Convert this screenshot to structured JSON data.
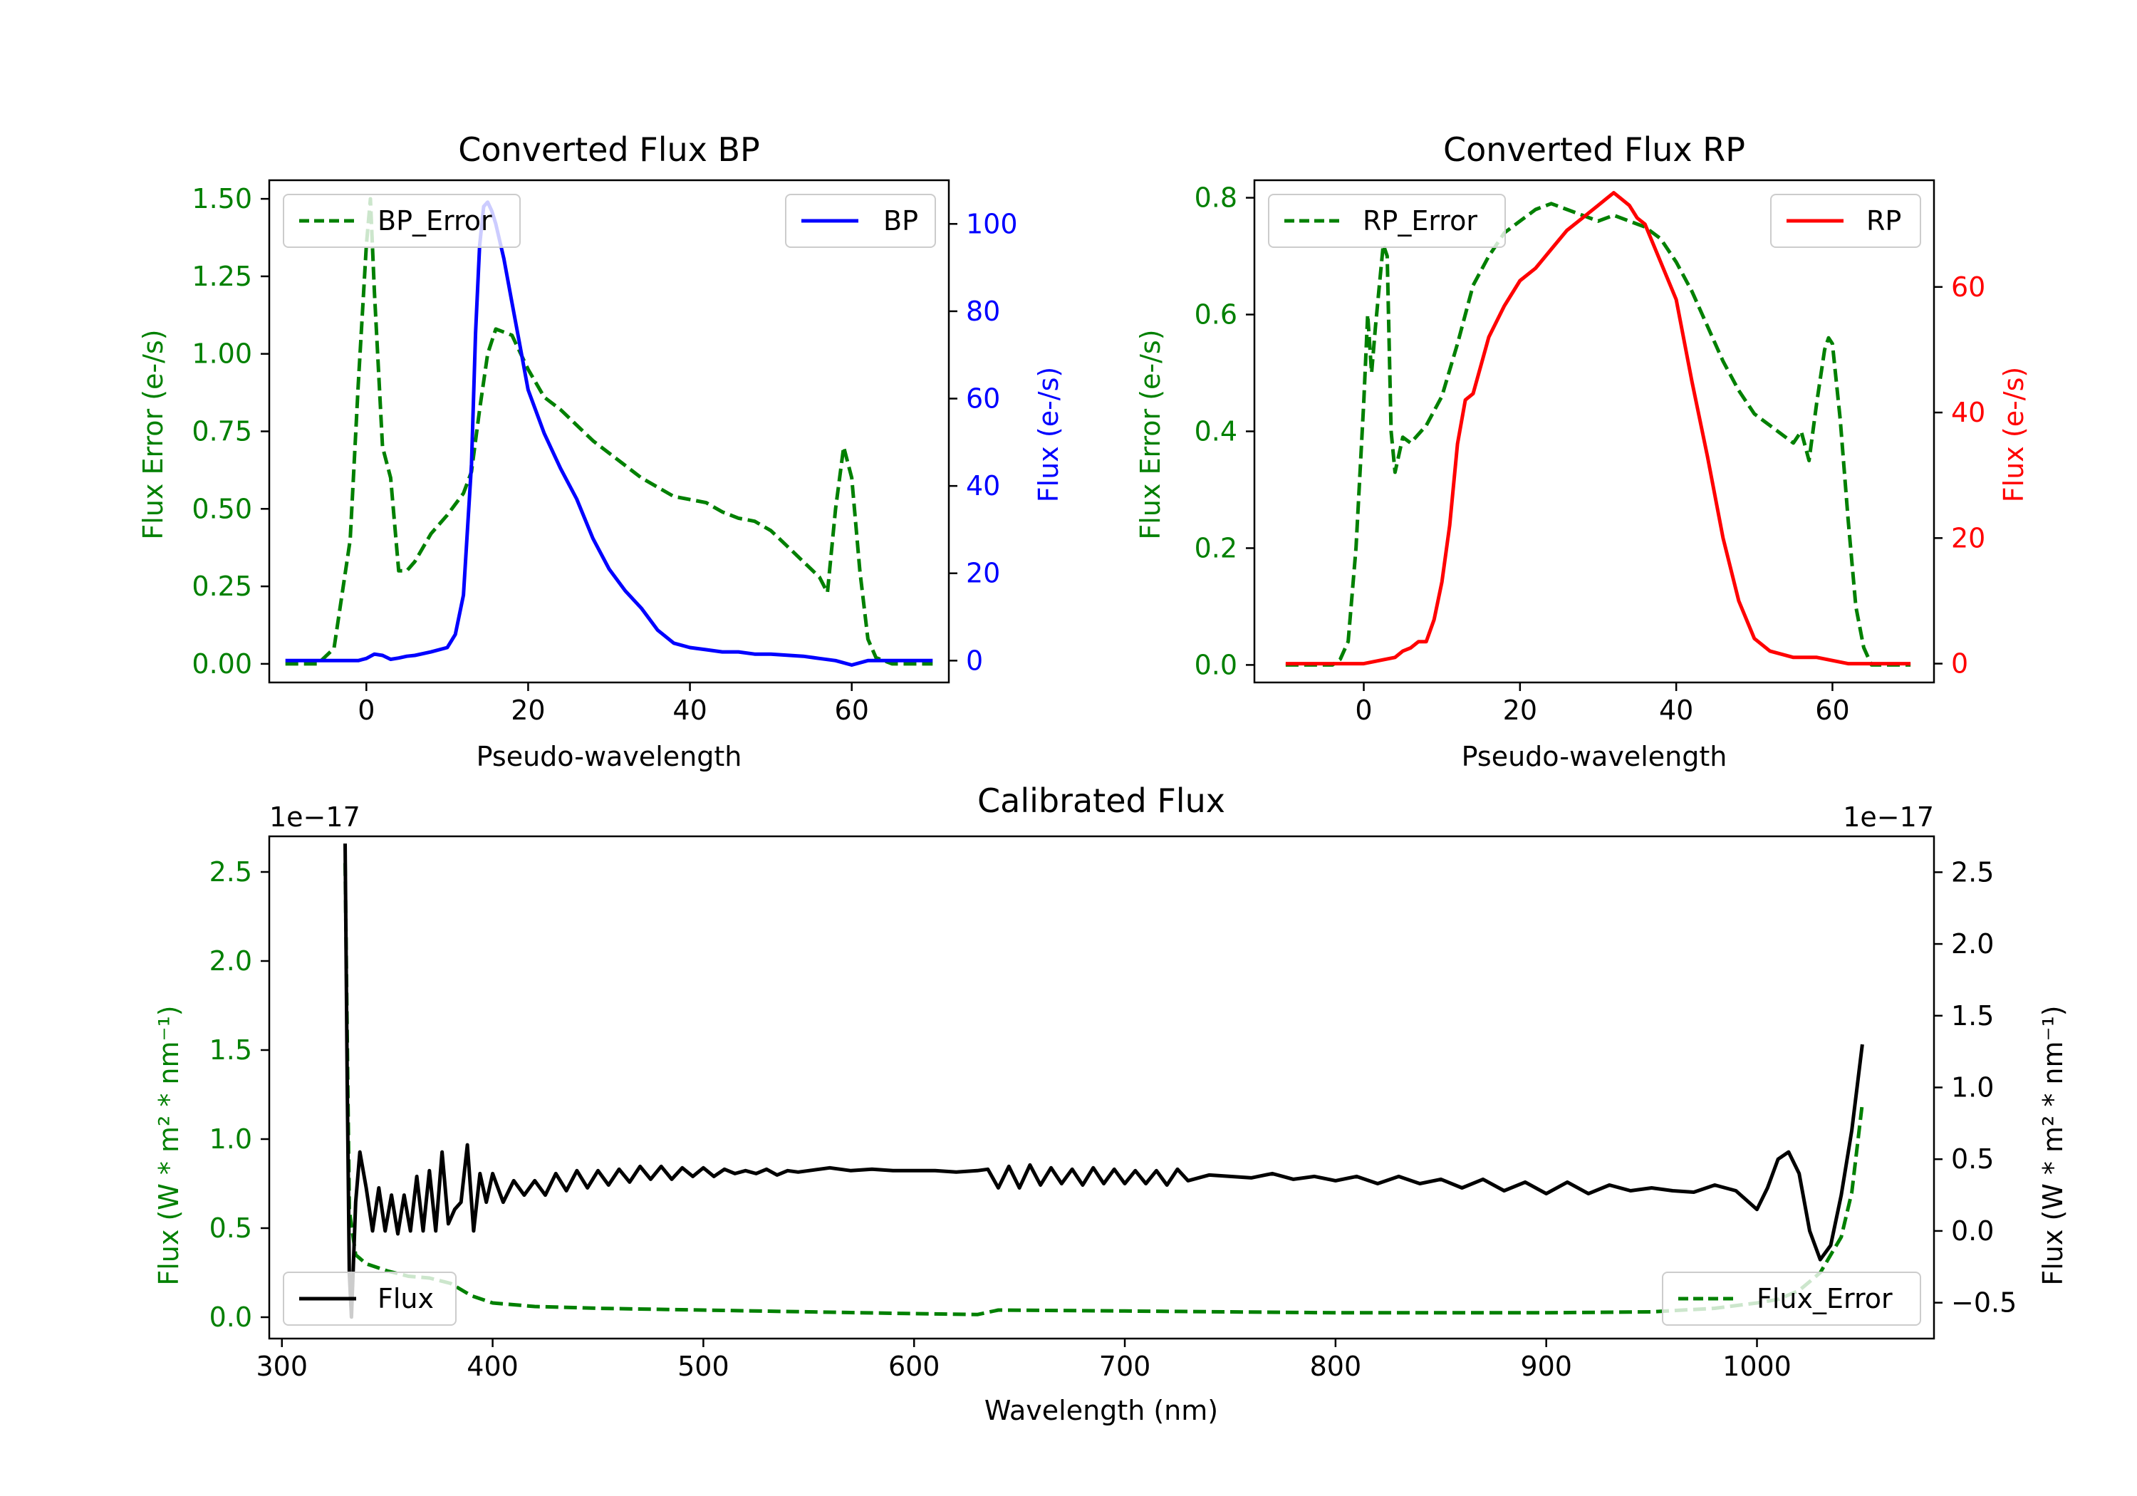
{
  "chart_data": [
    {
      "id": "bp",
      "type": "line",
      "title": "Converted Flux BP",
      "xlabel": "Pseudo-wavelength",
      "ylabel_left": "Flux Error (e-/s)",
      "ylabel_right": "Flux (e-/s)",
      "xlim": [
        -12,
        72
      ],
      "ylim_left": [
        -0.06,
        1.56
      ],
      "ylim_right": [
        -5,
        110
      ],
      "xticks": [
        "0",
        "20",
        "40",
        "60"
      ],
      "xtick_values": [
        0,
        20,
        40,
        60
      ],
      "yticks_left": [
        "0.00",
        "0.25",
        "0.50",
        "0.75",
        "1.00",
        "1.25",
        "1.50"
      ],
      "ytick_values_left": [
        0,
        0.25,
        0.5,
        0.75,
        1.0,
        1.25,
        1.5
      ],
      "yticks_right": [
        "0",
        "20",
        "40",
        "60",
        "80",
        "100"
      ],
      "ytick_values_right": [
        0,
        20,
        40,
        60,
        80,
        100
      ],
      "colors": {
        "error": "#008000",
        "flux": "#0000ff",
        "left_axis": "#008000",
        "right_axis": "#0000ff"
      },
      "series": [
        {
          "name": "BP_Error",
          "axis": "left",
          "style": "dashed",
          "color": "#008000",
          "x": [
            -10,
            -6,
            -4,
            -2,
            -1,
            0,
            0.5,
            1,
            2,
            3,
            4,
            5,
            6,
            8,
            10,
            12,
            13,
            14,
            15,
            16,
            17,
            18,
            20,
            22,
            24,
            26,
            28,
            30,
            32,
            34,
            36,
            38,
            40,
            42,
            44,
            46,
            48,
            50,
            52,
            54,
            56,
            57,
            58,
            59,
            60,
            61,
            62,
            63,
            65,
            70
          ],
          "values": [
            0,
            0,
            0.05,
            0.4,
            0.9,
            1.35,
            1.5,
            1.2,
            0.7,
            0.6,
            0.3,
            0.3,
            0.33,
            0.42,
            0.48,
            0.55,
            0.62,
            0.82,
            1.0,
            1.08,
            1.07,
            1.06,
            0.95,
            0.86,
            0.82,
            0.77,
            0.72,
            0.68,
            0.64,
            0.6,
            0.57,
            0.54,
            0.53,
            0.52,
            0.49,
            0.47,
            0.46,
            0.43,
            0.38,
            0.33,
            0.28,
            0.23,
            0.5,
            0.7,
            0.6,
            0.3,
            0.08,
            0.02,
            0,
            0
          ]
        },
        {
          "name": "BP",
          "axis": "right",
          "style": "solid",
          "color": "#0000ff",
          "x": [
            -10,
            -5,
            -3,
            -1,
            0,
            1,
            2,
            3,
            4,
            5,
            6,
            8,
            10,
            11,
            12,
            13,
            13.5,
            14,
            14.5,
            15,
            15.5,
            16,
            17,
            18,
            19,
            20,
            22,
            24,
            26,
            28,
            30,
            32,
            34,
            36,
            38,
            40,
            42,
            44,
            46,
            48,
            50,
            54,
            56,
            58,
            60,
            62,
            64,
            66,
            70
          ],
          "values": [
            0,
            0,
            0,
            0,
            0.5,
            1.5,
            1.2,
            0.3,
            0.6,
            1,
            1.2,
            2,
            3,
            6,
            15,
            45,
            75,
            95,
            104,
            105,
            103,
            100,
            92,
            82,
            72,
            62,
            52,
            44,
            37,
            28,
            21,
            16,
            12,
            7,
            4,
            3,
            2.5,
            2,
            2,
            1.5,
            1.5,
            1,
            0.5,
            0,
            -1,
            0,
            0,
            0,
            0
          ]
        }
      ],
      "legend": [
        {
          "label": "BP_Error",
          "style": "dashed",
          "color": "#008000",
          "position": "upper-left"
        },
        {
          "label": "BP",
          "style": "solid",
          "color": "#0000ff",
          "position": "upper-right"
        }
      ]
    },
    {
      "id": "rp",
      "type": "line",
      "title": "Converted Flux RP",
      "xlabel": "Pseudo-wavelength",
      "ylabel_left": "Flux Error (e-/s)",
      "ylabel_right": "Flux (e-/s)",
      "xlim": [
        -14,
        73
      ],
      "ylim_left": [
        -0.03,
        0.83
      ],
      "ylim_right": [
        -3,
        77
      ],
      "xticks": [
        "0",
        "20",
        "40",
        "60"
      ],
      "xtick_values": [
        0,
        20,
        40,
        60
      ],
      "yticks_left": [
        "0.0",
        "0.2",
        "0.4",
        "0.6",
        "0.8"
      ],
      "ytick_values_left": [
        0,
        0.2,
        0.4,
        0.6,
        0.8
      ],
      "yticks_right": [
        "0",
        "20",
        "40",
        "60"
      ],
      "ytick_values_right": [
        0,
        20,
        40,
        60
      ],
      "colors": {
        "error": "#008000",
        "flux": "#ff0000",
        "left_axis": "#008000",
        "right_axis": "#ff0000"
      },
      "series": [
        {
          "name": "RP_Error",
          "axis": "left",
          "style": "dashed",
          "color": "#008000",
          "x": [
            -10,
            -5,
            -4,
            -3,
            -2,
            -1,
            0,
            0.5,
            1,
            1.5,
            2,
            2.5,
            3,
            3.5,
            4,
            5,
            6,
            8,
            10,
            12,
            14,
            16,
            18,
            20,
            22,
            24,
            26,
            28,
            30,
            32,
            34,
            36,
            38,
            40,
            42,
            44,
            46,
            48,
            50,
            52,
            54,
            55,
            56,
            57,
            58,
            59,
            59.5,
            60,
            61,
            62,
            63,
            64,
            65,
            70
          ],
          "values": [
            0,
            0,
            0,
            0.01,
            0.04,
            0.2,
            0.45,
            0.6,
            0.5,
            0.58,
            0.65,
            0.72,
            0.7,
            0.4,
            0.33,
            0.39,
            0.38,
            0.41,
            0.46,
            0.55,
            0.65,
            0.7,
            0.74,
            0.76,
            0.78,
            0.79,
            0.78,
            0.77,
            0.76,
            0.77,
            0.76,
            0.75,
            0.73,
            0.69,
            0.64,
            0.58,
            0.52,
            0.47,
            0.43,
            0.41,
            0.39,
            0.38,
            0.4,
            0.35,
            0.45,
            0.54,
            0.56,
            0.55,
            0.42,
            0.25,
            0.1,
            0.03,
            0,
            0
          ]
        },
        {
          "name": "RP",
          "axis": "right",
          "style": "solid",
          "color": "#ff0000",
          "x": [
            -10,
            -5,
            0,
            2,
            4,
            5,
            6,
            7,
            8,
            9,
            10,
            11,
            12,
            13,
            14,
            16,
            18,
            20,
            22,
            24,
            26,
            28,
            30,
            31,
            32,
            33,
            34,
            35,
            36,
            37,
            38,
            40,
            42,
            44,
            46,
            48,
            50,
            52,
            55,
            58,
            60,
            62,
            65,
            70
          ],
          "values": [
            0,
            0,
            0,
            0.5,
            1,
            2,
            2.5,
            3.5,
            3.5,
            7,
            13,
            22,
            35,
            42,
            43,
            52,
            57,
            61,
            63,
            66,
            69,
            71,
            73,
            74,
            75,
            74,
            73,
            71,
            70,
            67,
            64,
            58,
            45,
            33,
            20,
            10,
            4,
            2,
            1,
            1,
            0.5,
            0,
            0,
            0
          ]
        }
      ],
      "legend": [
        {
          "label": "RP_Error",
          "style": "dashed",
          "color": "#008000",
          "position": "upper-left"
        },
        {
          "label": "RP",
          "style": "solid",
          "color": "#ff0000",
          "position": "upper-right"
        }
      ]
    },
    {
      "id": "cal",
      "type": "line",
      "title": "Calibrated Flux",
      "xlabel": "Wavelength (nm)",
      "ylabel_left": "Flux (W * m² * nm⁻¹)",
      "ylabel_right": "Flux (W * m² * nm⁻¹)",
      "offset_left": "1e−17",
      "offset_right": "1e−17",
      "xlim": [
        294,
        1084
      ],
      "ylim_left": [
        -0.12,
        2.7
      ],
      "ylim_right": [
        -0.75,
        2.75
      ],
      "xticks": [
        "300",
        "400",
        "500",
        "600",
        "700",
        "800",
        "900",
        "1000"
      ],
      "xtick_values": [
        300,
        400,
        500,
        600,
        700,
        800,
        900,
        1000
      ],
      "yticks_left": [
        "0.0",
        "0.5",
        "1.0",
        "1.5",
        "2.0",
        "2.5"
      ],
      "ytick_values_left": [
        0,
        0.5,
        1.0,
        1.5,
        2.0,
        2.5
      ],
      "yticks_right": [
        "−0.5",
        "0.0",
        "0.5",
        "1.0",
        "1.5",
        "2.0",
        "2.5"
      ],
      "ytick_values_right": [
        -0.5,
        0,
        0.5,
        1.0,
        1.5,
        2.0,
        2.5
      ],
      "colors": {
        "error": "#008000",
        "flux": "#000000",
        "left_axis": "#008000",
        "right_axis": "#000000"
      },
      "series": [
        {
          "name": "Flux_Error",
          "axis": "left",
          "style": "dashed",
          "color": "#008000",
          "x": [
            330,
            332,
            335,
            340,
            350,
            360,
            370,
            380,
            390,
            400,
            420,
            450,
            500,
            550,
            600,
            630,
            640,
            700,
            800,
            900,
            950,
            980,
            1000,
            1010,
            1020,
            1030,
            1040,
            1045,
            1050
          ],
          "values": [
            2.55,
            0.6,
            0.35,
            0.3,
            0.26,
            0.23,
            0.22,
            0.19,
            0.12,
            0.08,
            0.06,
            0.05,
            0.04,
            0.03,
            0.02,
            0.015,
            0.04,
            0.035,
            0.025,
            0.025,
            0.03,
            0.05,
            0.08,
            0.1,
            0.15,
            0.25,
            0.45,
            0.7,
            1.2
          ]
        },
        {
          "name": "Flux",
          "axis": "right",
          "style": "solid",
          "color": "#000000",
          "x": [
            330,
            331,
            332,
            333,
            335,
            337,
            340,
            343,
            346,
            349,
            352,
            355,
            358,
            361,
            364,
            367,
            370,
            373,
            376,
            379,
            382,
            385,
            388,
            391,
            394,
            397,
            400,
            405,
            410,
            415,
            420,
            425,
            430,
            435,
            440,
            445,
            450,
            455,
            460,
            465,
            470,
            475,
            480,
            485,
            490,
            495,
            500,
            505,
            510,
            515,
            520,
            525,
            530,
            535,
            540,
            545,
            550,
            555,
            560,
            570,
            580,
            590,
            600,
            610,
            620,
            630,
            635,
            640,
            645,
            650,
            655,
            660,
            665,
            670,
            675,
            680,
            685,
            690,
            695,
            700,
            705,
            710,
            715,
            720,
            725,
            730,
            740,
            750,
            760,
            770,
            780,
            790,
            800,
            810,
            820,
            830,
            840,
            850,
            860,
            870,
            880,
            890,
            900,
            910,
            920,
            930,
            940,
            950,
            960,
            970,
            980,
            990,
            1000,
            1005,
            1010,
            1015,
            1020,
            1025,
            1030,
            1035,
            1040,
            1045,
            1050
          ],
          "values": [
            2.7,
            1.0,
            -0.3,
            -0.6,
            0.2,
            0.55,
            0.3,
            0.0,
            0.3,
            0.0,
            0.25,
            -0.02,
            0.25,
            0.0,
            0.38,
            0.0,
            0.42,
            0.0,
            0.55,
            0.05,
            0.15,
            0.2,
            0.6,
            0.0,
            0.4,
            0.2,
            0.4,
            0.2,
            0.35,
            0.25,
            0.35,
            0.25,
            0.4,
            0.28,
            0.42,
            0.3,
            0.42,
            0.32,
            0.43,
            0.34,
            0.45,
            0.36,
            0.45,
            0.36,
            0.44,
            0.38,
            0.44,
            0.38,
            0.43,
            0.4,
            0.42,
            0.4,
            0.43,
            0.39,
            0.42,
            0.41,
            0.42,
            0.43,
            0.44,
            0.42,
            0.43,
            0.42,
            0.42,
            0.42,
            0.41,
            0.42,
            0.43,
            0.3,
            0.45,
            0.3,
            0.46,
            0.32,
            0.44,
            0.33,
            0.43,
            0.32,
            0.44,
            0.33,
            0.43,
            0.33,
            0.42,
            0.33,
            0.42,
            0.32,
            0.43,
            0.35,
            0.39,
            0.38,
            0.37,
            0.4,
            0.36,
            0.38,
            0.35,
            0.38,
            0.33,
            0.38,
            0.33,
            0.36,
            0.3,
            0.36,
            0.28,
            0.34,
            0.26,
            0.34,
            0.26,
            0.32,
            0.28,
            0.3,
            0.28,
            0.27,
            0.32,
            0.28,
            0.15,
            0.3,
            0.5,
            0.55,
            0.4,
            0.0,
            -0.2,
            -0.1,
            0.25,
            0.7,
            1.3
          ]
        }
      ],
      "legend": [
        {
          "label": "Flux",
          "style": "solid",
          "color": "#000000",
          "position": "lower-left"
        },
        {
          "label": "Flux_Error",
          "style": "dashed",
          "color": "#008000",
          "position": "lower-right"
        }
      ]
    }
  ]
}
